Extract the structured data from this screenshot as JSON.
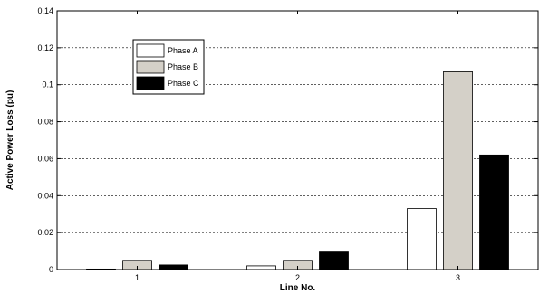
{
  "chart_data": {
    "type": "bar",
    "title": "",
    "xlabel": "Line No.",
    "ylabel": "Active Power Loss (pu)",
    "categories": [
      "1",
      "2",
      "3"
    ],
    "ylim": [
      0,
      0.14
    ],
    "yticks": [
      "0",
      "0.02",
      "0.04",
      "0.06",
      "0.08",
      "0.1",
      "0.12",
      "0.14"
    ],
    "ytick_values": [
      0,
      0.02,
      0.04,
      0.06,
      0.08,
      0.1,
      0.12,
      0.14
    ],
    "grid": "horizontal dotted",
    "legend_position": "top-left",
    "series": [
      {
        "name": "Phase A",
        "color": "#ffffff",
        "values": [
          0.0003,
          0.002,
          0.033
        ]
      },
      {
        "name": "Phase B",
        "color": "#d4d0c8",
        "values": [
          0.005,
          0.005,
          0.107
        ]
      },
      {
        "name": "Phase C",
        "color": "#000000",
        "values": [
          0.0025,
          0.0095,
          0.062
        ]
      }
    ]
  }
}
